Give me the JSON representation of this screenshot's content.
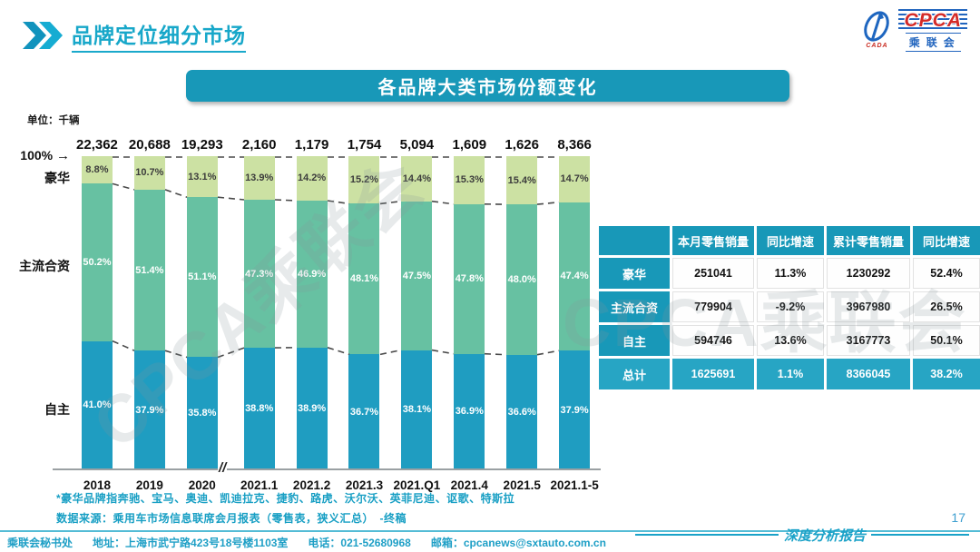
{
  "page": {
    "title": "品牌定位细分市场"
  },
  "logo": {
    "cpca": "CPCA",
    "cada": "CADA",
    "name_cn": "乘联会"
  },
  "banner": {
    "title": "各品牌大类市场份额变化"
  },
  "chart_data": {
    "type": "stacked-bar",
    "title": "各品牌大类市场份额变化",
    "unit_label": "单位：千辆",
    "axis_top_label": "100%",
    "axis_break_symbol": "//",
    "axis_break_after_index": 2,
    "categories": [
      "2018",
      "2019",
      "2020",
      "2021.1",
      "2021.2",
      "2021.3",
      "2021.Q1",
      "2021.4",
      "2021.5",
      "2021.1-5"
    ],
    "totals": [
      "22,362",
      "20,688",
      "19,293",
      "2,160",
      "1,179",
      "1,754",
      "5,094",
      "1,609",
      "1,626",
      "8,366"
    ],
    "series": [
      {
        "name": "豪华",
        "color": "#CCE1A3",
        "label_color": "#3c3c3c",
        "values": [
          8.8,
          10.7,
          13.1,
          13.9,
          14.2,
          15.2,
          14.4,
          15.3,
          15.4,
          14.7
        ]
      },
      {
        "name": "主流合资",
        "color": "#67C1A2",
        "label_color": "#ffffff",
        "values": [
          50.2,
          51.4,
          51.1,
          47.3,
          46.9,
          48.1,
          47.5,
          47.8,
          48.0,
          47.4
        ]
      },
      {
        "name": "自主",
        "color": "#1F9DC1",
        "label_color": "#ffffff",
        "values": [
          41.0,
          37.9,
          35.8,
          38.8,
          38.9,
          36.7,
          38.1,
          36.9,
          36.6,
          37.9
        ]
      }
    ],
    "ylim": [
      0,
      100
    ],
    "legend_position": "left-axis-labels",
    "grid": false
  },
  "table": {
    "headers": [
      "",
      "本月零售销量",
      "同比增速",
      "累计零售销量",
      "同比增速"
    ],
    "rows": [
      {
        "label": "豪华",
        "cells": [
          "251041",
          "11.3%",
          "1230292",
          "52.4%"
        ],
        "highlight": false
      },
      {
        "label": "主流合资",
        "cells": [
          "779904",
          "-9.2%",
          "3967980",
          "26.5%"
        ],
        "highlight": false
      },
      {
        "label": "自主",
        "cells": [
          "594746",
          "13.6%",
          "3167773",
          "50.1%"
        ],
        "highlight": false
      },
      {
        "label": "总计",
        "cells": [
          "1625691",
          "1.1%",
          "8366045",
          "38.2%"
        ],
        "highlight": true
      }
    ]
  },
  "footnotes": {
    "line1": "*豪华品牌指奔驰、宝马、奥迪、凯迪拉克、捷豹、路虎、沃尔沃、英菲尼迪、讴歌、特斯拉",
    "line2": "数据来源：乘用车市场信息联席会月报表（零售表，狭义汇总）　-终稿"
  },
  "footer": {
    "secretariat": "乘联会秘书处",
    "address": "地址：上海市武宁路423号18号楼1103室",
    "phone": "电话：021-52680968",
    "email": "邮箱：cpcanews@sxtauto.com.cn"
  },
  "report": {
    "label": "深度分析报告",
    "page_number": "17"
  },
  "watermark": {
    "text": "CPCA乘联会"
  }
}
